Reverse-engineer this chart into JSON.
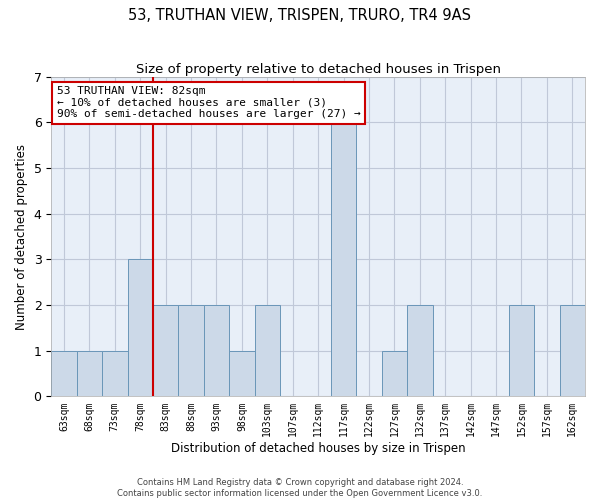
{
  "title1": "53, TRUTHAN VIEW, TRISPEN, TRURO, TR4 9AS",
  "title2": "Size of property relative to detached houses in Trispen",
  "xlabel": "Distribution of detached houses by size in Trispen",
  "ylabel": "Number of detached properties",
  "categories": [
    "63sqm",
    "68sqm",
    "73sqm",
    "78sqm",
    "83sqm",
    "88sqm",
    "93sqm",
    "98sqm",
    "103sqm",
    "107sqm",
    "112sqm",
    "117sqm",
    "122sqm",
    "127sqm",
    "132sqm",
    "137sqm",
    "142sqm",
    "147sqm",
    "152sqm",
    "157sqm",
    "162sqm"
  ],
  "values": [
    1,
    1,
    1,
    3,
    2,
    2,
    2,
    1,
    2,
    0,
    0,
    6,
    0,
    1,
    2,
    0,
    0,
    0,
    2,
    0,
    2
  ],
  "bar_color": "#ccd9e8",
  "bar_edge_color": "#6a96b8",
  "annotation_box_text": "53 TRUTHAN VIEW: 82sqm\n← 10% of detached houses are smaller (3)\n90% of semi-detached houses are larger (27) →",
  "annotation_box_color": "#ffffff",
  "annotation_box_edge_color": "#cc0000",
  "ylim": [
    0,
    7
  ],
  "yticks": [
    0,
    1,
    2,
    3,
    4,
    5,
    6,
    7
  ],
  "vline_x": 3.5,
  "vline_color": "#cc0000",
  "background_color": "#e8eff8",
  "grid_color": "#c0c8d8",
  "footer1": "Contains HM Land Registry data © Crown copyright and database right 2024.",
  "footer2": "Contains public sector information licensed under the Open Government Licence v3.0."
}
